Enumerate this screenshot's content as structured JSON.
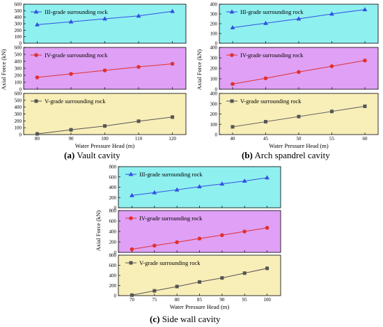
{
  "chart_data": [
    {
      "type": "line",
      "caption": {
        "letter": "(a)",
        "text": "Vault cavity"
      },
      "xlabel": "Water Pressure Head (m)",
      "ylabel": "Axial Force (kN)",
      "xlim": [
        76,
        124
      ],
      "xticks": [
        80,
        90,
        100,
        110,
        120
      ],
      "panels": [
        {
          "bg": "#8ff0f0",
          "label": "III-grade surrounding rock",
          "color": "#3050e0",
          "marker": "triangle",
          "ylim": [
            0,
            600
          ],
          "yticks": [
            0,
            100,
            200,
            300,
            400,
            500,
            600
          ],
          "x": [
            80,
            90,
            100,
            110,
            120
          ],
          "y": [
            285,
            330,
            375,
            420,
            490
          ]
        },
        {
          "bg": "#dfa0f5",
          "label": "IV-grade surrounding rock",
          "color": "#e03030",
          "marker": "circle",
          "ylim": [
            0,
            600
          ],
          "yticks": [
            0,
            100,
            200,
            300,
            400,
            500,
            600
          ],
          "x": [
            80,
            90,
            100,
            110,
            120
          ],
          "y": [
            170,
            220,
            270,
            320,
            365
          ]
        },
        {
          "bg": "#f8eeb8",
          "label": "V-grade surrounding rock",
          "color": "#555555",
          "marker": "square",
          "ylim": [
            0,
            600
          ],
          "yticks": [
            0,
            100,
            200,
            300,
            400,
            500,
            600
          ],
          "x": [
            80,
            90,
            100,
            110,
            120
          ],
          "y": [
            10,
            70,
            125,
            195,
            255
          ]
        }
      ]
    },
    {
      "type": "line",
      "caption": {
        "letter": "(b)",
        "text": "Arch spandrel cavity"
      },
      "xlabel": "Water Pressure Head (m)",
      "ylabel": "Axial Force (kN)",
      "xlim": [
        38,
        62
      ],
      "xticks": [
        40,
        45,
        50,
        55,
        60
      ],
      "panels": [
        {
          "bg": "#8ff0f0",
          "label": "III-grade surrounding rock",
          "color": "#3050e0",
          "marker": "triangle",
          "ylim": [
            0,
            400
          ],
          "yticks": [
            0,
            100,
            200,
            300,
            400
          ],
          "x": [
            40,
            45,
            50,
            55,
            60
          ],
          "y": [
            160,
            205,
            250,
            300,
            345
          ]
        },
        {
          "bg": "#dfa0f5",
          "label": "IV-grade surrounding rock",
          "color": "#e03030",
          "marker": "circle",
          "ylim": [
            0,
            400
          ],
          "yticks": [
            0,
            100,
            200,
            300,
            400
          ],
          "x": [
            40,
            45,
            50,
            55,
            60
          ],
          "y": [
            50,
            105,
            165,
            220,
            275
          ]
        },
        {
          "bg": "#f8eeb8",
          "label": "V-grade surrounding rock",
          "color": "#555555",
          "marker": "square",
          "ylim": [
            0,
            400
          ],
          "yticks": [
            0,
            100,
            200,
            300,
            400
          ],
          "x": [
            40,
            45,
            50,
            55,
            60
          ],
          "y": [
            75,
            125,
            175,
            225,
            275
          ]
        }
      ]
    },
    {
      "type": "line",
      "caption": {
        "letter": "(c)",
        "text": "Side wall cavity"
      },
      "xlabel": "Water Pressure Head (m)",
      "ylabel": "Axial Force (kN)",
      "xlim": [
        67,
        103
      ],
      "xticks": [
        70,
        75,
        80,
        85,
        90,
        95,
        100
      ],
      "panels": [
        {
          "bg": "#8ff0f0",
          "label": "III-grade surrounding rock",
          "color": "#3050e0",
          "marker": "triangle",
          "ylim": [
            0,
            800
          ],
          "yticks": [
            0,
            200,
            400,
            600,
            800
          ],
          "x": [
            70,
            75,
            80,
            85,
            90,
            95,
            100
          ],
          "y": [
            240,
            295,
            350,
            410,
            465,
            520,
            585
          ]
        },
        {
          "bg": "#dfa0f5",
          "label": "IV-grade surrounding rock",
          "color": "#e03030",
          "marker": "circle",
          "ylim": [
            0,
            800
          ],
          "yticks": [
            0,
            200,
            400,
            600,
            800
          ],
          "x": [
            70,
            75,
            80,
            85,
            90,
            95,
            100
          ],
          "y": [
            60,
            130,
            195,
            265,
            330,
            400,
            470
          ]
        },
        {
          "bg": "#f8eeb8",
          "label": "V-grade surrounding rock",
          "color": "#555555",
          "marker": "square",
          "ylim": [
            0,
            800
          ],
          "yticks": [
            0,
            200,
            400,
            600,
            800
          ],
          "x": [
            70,
            75,
            80,
            85,
            90,
            95,
            100
          ],
          "y": [
            10,
            95,
            180,
            270,
            350,
            445,
            540
          ]
        }
      ]
    }
  ]
}
